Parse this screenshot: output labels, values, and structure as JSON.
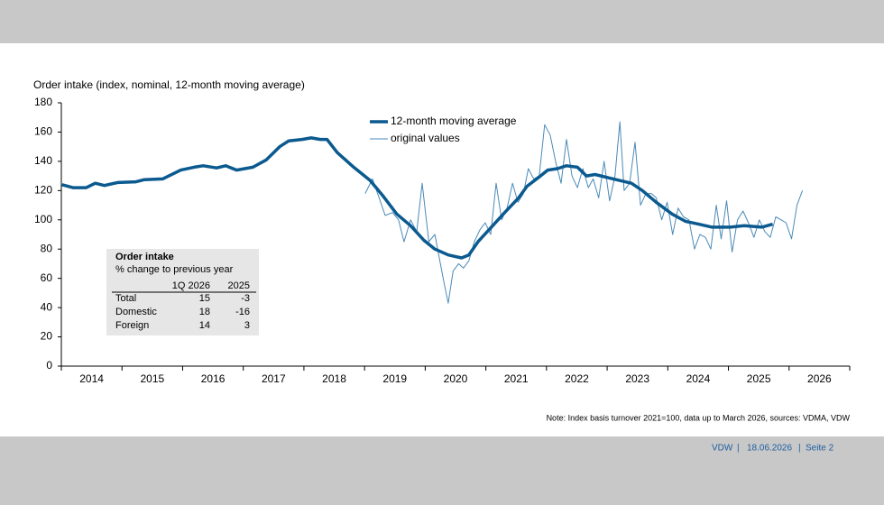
{
  "chart_data": {
    "type": "line",
    "ylabel": "Order intake (index, nominal, 12-month moving average)",
    "xlim": [
      2014,
      2027
    ],
    "ylim": [
      0,
      180
    ],
    "xticks": [
      {
        "value": 2014.5,
        "label": "2014"
      },
      {
        "value": 2015.5,
        "label": "2015"
      },
      {
        "value": 2016.5,
        "label": "2016"
      },
      {
        "value": 2017.5,
        "label": "2017"
      },
      {
        "value": 2018.5,
        "label": "2018"
      },
      {
        "value": 2019.5,
        "label": "2019"
      },
      {
        "value": 2020.5,
        "label": "2020"
      },
      {
        "value": 2021.5,
        "label": "2021"
      },
      {
        "value": 2022.5,
        "label": "2022"
      },
      {
        "value": 2023.5,
        "label": "2023"
      },
      {
        "value": 2024.5,
        "label": "2024"
      },
      {
        "value": 2025.5,
        "label": "2025"
      },
      {
        "value": 2026.5,
        "label": "2026"
      }
    ],
    "yticks": [
      0,
      20,
      40,
      60,
      80,
      100,
      120,
      140,
      160,
      180
    ],
    "grid": false,
    "legend": "top-center",
    "series": [
      {
        "name": "12-month moving average",
        "color": "#0b5a8f",
        "width": 3.5,
        "x": [
          2014.01,
          2014.19,
          2014.41,
          2014.56,
          2014.71,
          2014.93,
          2015.23,
          2015.37,
          2015.67,
          2015.97,
          2016.19,
          2016.34,
          2016.56,
          2016.71,
          2016.89,
          2017.16,
          2017.38,
          2017.6,
          2017.75,
          2017.97,
          2018.12,
          2018.27,
          2018.38,
          2018.55,
          2018.82,
          2019.09,
          2019.31,
          2019.53,
          2019.76,
          2019.98,
          2020.16,
          2020.38,
          2020.6,
          2020.72,
          2020.87,
          2021.09,
          2021.31,
          2021.54,
          2021.68,
          2021.87,
          2022.02,
          2022.18,
          2022.33,
          2022.51,
          2022.66,
          2022.8,
          2023.1,
          2023.4,
          2023.58,
          2023.81,
          2024.07,
          2024.29,
          2024.51,
          2024.73,
          2025.03,
          2025.26,
          2025.55,
          2025.73
        ],
        "values": [
          124,
          122,
          122,
          125,
          123.5,
          125.5,
          126,
          127.5,
          128,
          134,
          136,
          137,
          135.5,
          137,
          134,
          136,
          141,
          150,
          154,
          155,
          156,
          155,
          155,
          146,
          136,
          127,
          116,
          104,
          96,
          86,
          80,
          76,
          74,
          76,
          85,
          95,
          105,
          115,
          123,
          129,
          134,
          135,
          137,
          136,
          130,
          131,
          128,
          125,
          120,
          112,
          104,
          99,
          97,
          95,
          95,
          96,
          95,
          97
        ]
      },
      {
        "name": "original values",
        "color": "#4a8ab8",
        "width": 1,
        "x": [
          2019.01,
          2019.13,
          2019.24,
          2019.34,
          2019.46,
          2019.56,
          2019.65,
          2019.76,
          2019.86,
          2019.95,
          2020.06,
          2020.16,
          2020.25,
          2020.32,
          2020.38,
          2020.46,
          2020.55,
          2020.63,
          2020.72,
          2020.81,
          2020.9,
          2020.99,
          2021.08,
          2021.17,
          2021.26,
          2021.35,
          2021.44,
          2021.53,
          2021.62,
          2021.7,
          2021.79,
          2021.88,
          2021.97,
          2022.06,
          2022.15,
          2022.24,
          2022.33,
          2022.42,
          2022.51,
          2022.6,
          2022.69,
          2022.77,
          2022.86,
          2022.95,
          2023.04,
          2023.13,
          2023.21,
          2023.28,
          2023.37,
          2023.46,
          2023.55,
          2023.64,
          2023.73,
          2023.81,
          2023.9,
          2023.99,
          2024.08,
          2024.17,
          2024.26,
          2024.35,
          2024.44,
          2024.53,
          2024.62,
          2024.71,
          2024.8,
          2024.88,
          2024.97,
          2025.06,
          2025.15,
          2025.24,
          2025.33,
          2025.42,
          2025.51,
          2025.6,
          2025.69,
          2025.78,
          2025.87,
          2025.95,
          2026.04,
          2026.13,
          2026.22
        ],
        "values": [
          118,
          128,
          115,
          103,
          105,
          100,
          85,
          100,
          92,
          125,
          85,
          90,
          70,
          55,
          43,
          65,
          70,
          67,
          72,
          85,
          93,
          98,
          90,
          125,
          100,
          108,
          125,
          112,
          118,
          135,
          128,
          130,
          165,
          158,
          140,
          125,
          155,
          130,
          122,
          135,
          122,
          128,
          115,
          140,
          113,
          130,
          167,
          120,
          125,
          153,
          110,
          118,
          118,
          115,
          100,
          112,
          90,
          108,
          102,
          100,
          80,
          90,
          88,
          80,
          110,
          87,
          113,
          78,
          100,
          106,
          98,
          88,
          100,
          92,
          88,
          102,
          100,
          98,
          87,
          110,
          120
        ]
      }
    ]
  },
  "inset_table": {
    "title": "Order intake",
    "subtitle": "% change to previous year",
    "columns": [
      "1Q 2026",
      "2025"
    ],
    "rows": [
      [
        "Total",
        15,
        -3
      ],
      [
        "Domestic",
        18,
        -16
      ],
      [
        "Foreign",
        14,
        3
      ]
    ]
  },
  "note": "Note: Index basis turnover 2021=100, data up to March 2026, sources: VDMA, VDW",
  "footer": [
    "VDW",
    "18.06.2026",
    "Seite 2"
  ]
}
